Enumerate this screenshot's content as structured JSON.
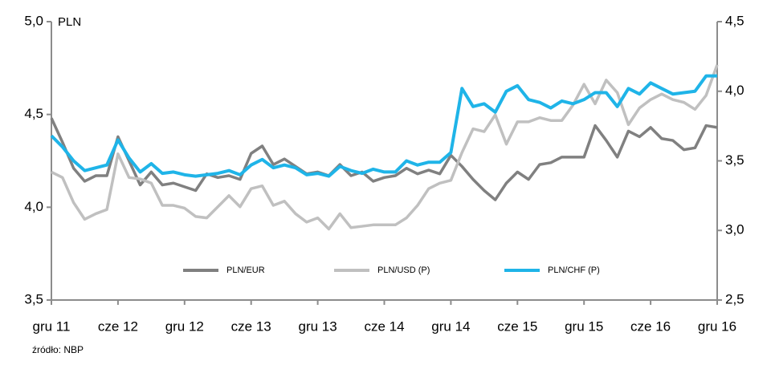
{
  "chart_data": {
    "type": "line",
    "y_label": "PLN",
    "source": "źródło:  NBP",
    "categories": [
      "gru 11",
      null,
      null,
      null,
      null,
      null,
      "cze 12",
      null,
      null,
      null,
      null,
      null,
      "gru 12",
      null,
      null,
      null,
      null,
      null,
      "cze 13",
      null,
      null,
      null,
      null,
      null,
      "gru 13",
      null,
      null,
      null,
      null,
      null,
      "cze 14",
      null,
      null,
      null,
      null,
      null,
      "gru 14",
      null,
      null,
      null,
      null,
      null,
      "cze 15",
      null,
      null,
      null,
      null,
      null,
      "gru 15",
      null,
      null,
      null,
      null,
      null,
      "cze 16",
      null,
      null,
      null,
      null,
      null,
      "gru 16"
    ],
    "ylim": [
      3.5,
      5.0
    ],
    "yticks": [
      {
        "value": 3.5,
        "label": "3,5"
      },
      {
        "value": 4.0,
        "label": "4,0"
      },
      {
        "value": 4.5,
        "label": "4,5"
      },
      {
        "value": 5.0,
        "label": "5,0"
      }
    ],
    "y2lim": [
      2.5,
      4.5
    ],
    "y2ticks": [
      {
        "value": 2.5,
        "label": "2,5"
      },
      {
        "value": 3.0,
        "label": "3,0"
      },
      {
        "value": 3.5,
        "label": "3,5"
      },
      {
        "value": 4.0,
        "label": "4,0"
      },
      {
        "value": 4.5,
        "label": "4,5"
      }
    ],
    "legend": "bottom",
    "series": [
      {
        "name": "PLN/EUR",
        "color": "#808080",
        "values": [
          4.48,
          4.35,
          4.21,
          4.14,
          4.17,
          4.17,
          4.38,
          4.25,
          4.12,
          4.19,
          4.12,
          4.13,
          4.11,
          4.09,
          4.18,
          4.16,
          4.17,
          4.15,
          4.29,
          4.33,
          4.23,
          4.26,
          4.22,
          4.18,
          4.19,
          4.17,
          4.23,
          4.17,
          4.19,
          4.14,
          4.16,
          4.17,
          4.21,
          4.18,
          4.2,
          4.18,
          4.28,
          4.22,
          4.15,
          4.09,
          4.04,
          4.13,
          4.19,
          4.15,
          4.23,
          4.24,
          4.27,
          4.27,
          4.27,
          4.44,
          4.36,
          4.27,
          4.41,
          4.38,
          4.43,
          4.37,
          4.36,
          4.31,
          4.32,
          4.44,
          4.43
        ]
      },
      {
        "name": "PLN/USD (P)",
        "color": "#c0c0c0",
        "axis": "y2",
        "values": [
          3.42,
          3.38,
          3.2,
          3.08,
          3.12,
          3.15,
          3.55,
          3.38,
          3.37,
          3.34,
          3.18,
          3.18,
          3.16,
          3.1,
          3.09,
          3.17,
          3.25,
          3.17,
          3.3,
          3.32,
          3.18,
          3.21,
          3.12,
          3.06,
          3.09,
          3.01,
          3.12,
          3.02,
          3.03,
          3.04,
          3.04,
          3.04,
          3.09,
          3.18,
          3.3,
          3.34,
          3.36,
          3.56,
          3.73,
          3.71,
          3.83,
          3.62,
          3.78,
          3.78,
          3.81,
          3.79,
          3.79,
          3.9,
          4.05,
          3.91,
          4.08,
          3.99,
          3.76,
          3.88,
          3.94,
          3.98,
          3.94,
          3.92,
          3.87,
          3.97,
          4.19
        ]
      },
      {
        "name": "PLN/CHF (P)",
        "color": "#1fb4e8",
        "axis": "y2",
        "values": [
          3.68,
          3.6,
          3.5,
          3.43,
          3.45,
          3.47,
          3.65,
          3.52,
          3.42,
          3.48,
          3.41,
          3.42,
          3.4,
          3.39,
          3.4,
          3.41,
          3.43,
          3.4,
          3.47,
          3.51,
          3.45,
          3.47,
          3.45,
          3.4,
          3.41,
          3.39,
          3.46,
          3.43,
          3.41,
          3.44,
          3.42,
          3.42,
          3.5,
          3.47,
          3.49,
          3.49,
          3.56,
          4.02,
          3.89,
          3.91,
          3.85,
          4.0,
          4.04,
          3.94,
          3.92,
          3.88,
          3.93,
          3.91,
          3.94,
          3.99,
          3.99,
          3.89,
          4.02,
          3.98,
          4.06,
          4.02,
          3.98,
          3.99,
          4.0,
          4.11,
          4.11
        ]
      }
    ]
  }
}
